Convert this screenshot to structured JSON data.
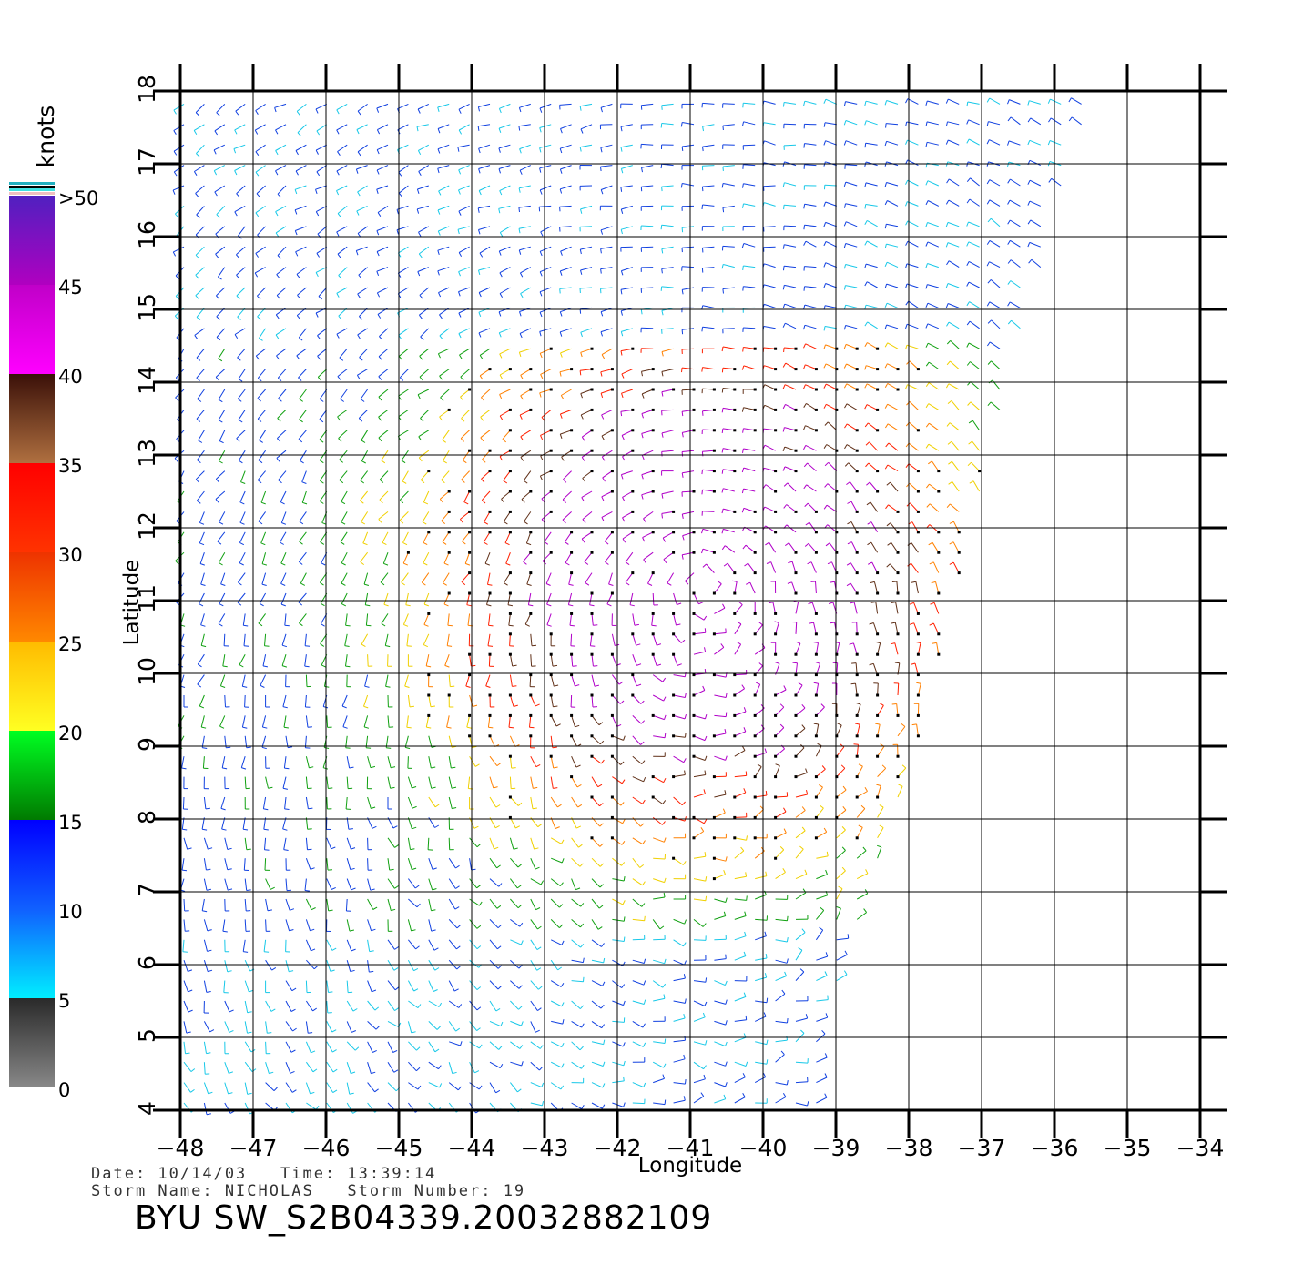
{
  "chart_data": {
    "type": "vector-field",
    "title": "",
    "xlabel": "Longitude",
    "ylabel": "Latitude",
    "xlim": [
      -48,
      -34
    ],
    "ylim": [
      4,
      18
    ],
    "x_ticks": [
      "−48",
      "−47",
      "−46",
      "−45",
      "−44",
      "−43",
      "−42",
      "−41",
      "−40",
      "−39",
      "−38",
      "−37",
      "−36",
      "−35",
      "−34"
    ],
    "y_ticks": [
      "4",
      "5",
      "6",
      "7",
      "8",
      "9",
      "10",
      "11",
      "12",
      "13",
      "14",
      "15",
      "16",
      "17",
      "18"
    ],
    "x_tick_values": [
      -48,
      -47,
      -46,
      -45,
      -44,
      -43,
      -42,
      -41,
      -40,
      -39,
      -38,
      -37,
      -36,
      -35,
      -34
    ],
    "y_tick_values": [
      4,
      5,
      6,
      7,
      8,
      9,
      10,
      11,
      12,
      13,
      14,
      15,
      16,
      17,
      18
    ],
    "grid": true,
    "storm_center": {
      "lon": -40.8,
      "lat": 11.3
    },
    "swath_east_edge": [
      [
        -35.5,
        18
      ],
      [
        -36.6,
        14
      ],
      [
        -37.6,
        10
      ],
      [
        -38.5,
        7
      ],
      [
        -39,
        5.5
      ],
      [
        -39,
        4
      ]
    ],
    "colorbar": {
      "unit_label": "knots",
      "tick_labels": [
        "0",
        "5",
        "10",
        "15",
        "20",
        "25",
        "30",
        "35",
        "40",
        "45",
        ">50"
      ],
      "tick_values": [
        0,
        5,
        10,
        15,
        20,
        25,
        30,
        35,
        40,
        45,
        50
      ],
      "segments": [
        {
          "from": 0,
          "to": 5,
          "colors": [
            "#888888",
            "#2a2a2a"
          ]
        },
        {
          "from": 5,
          "to": 10,
          "colors": [
            "#00eeff",
            "#1060ff"
          ]
        },
        {
          "from": 10,
          "to": 15,
          "colors": [
            "#1060ff",
            "#0000ff"
          ]
        },
        {
          "from": 15,
          "to": 20,
          "colors": [
            "#007a00",
            "#00ff22"
          ]
        },
        {
          "from": 20,
          "to": 25,
          "colors": [
            "#ffff22",
            "#ffbb00"
          ]
        },
        {
          "from": 25,
          "to": 30,
          "colors": [
            "#ff8800",
            "#ee3300"
          ]
        },
        {
          "from": 30,
          "to": 35,
          "colors": [
            "#ff3300",
            "#ff0000"
          ]
        },
        {
          "from": 35,
          "to": 40,
          "colors": [
            "#b07040",
            "#3a1008"
          ]
        },
        {
          "from": 40,
          "to": 45,
          "colors": [
            "#ff00ff",
            "#c000c8"
          ]
        },
        {
          "from": 45,
          "to": 50,
          "colors": [
            "#b000c0",
            "#5020c0"
          ]
        }
      ]
    }
  },
  "footer": {
    "date_time_line": "Date: 10/14/03   Time: 13:39:14",
    "storm_line": "Storm Name: NICHOLAS   Storm Number: 19",
    "title": "BYU SW_S2B04339.20032882109"
  }
}
